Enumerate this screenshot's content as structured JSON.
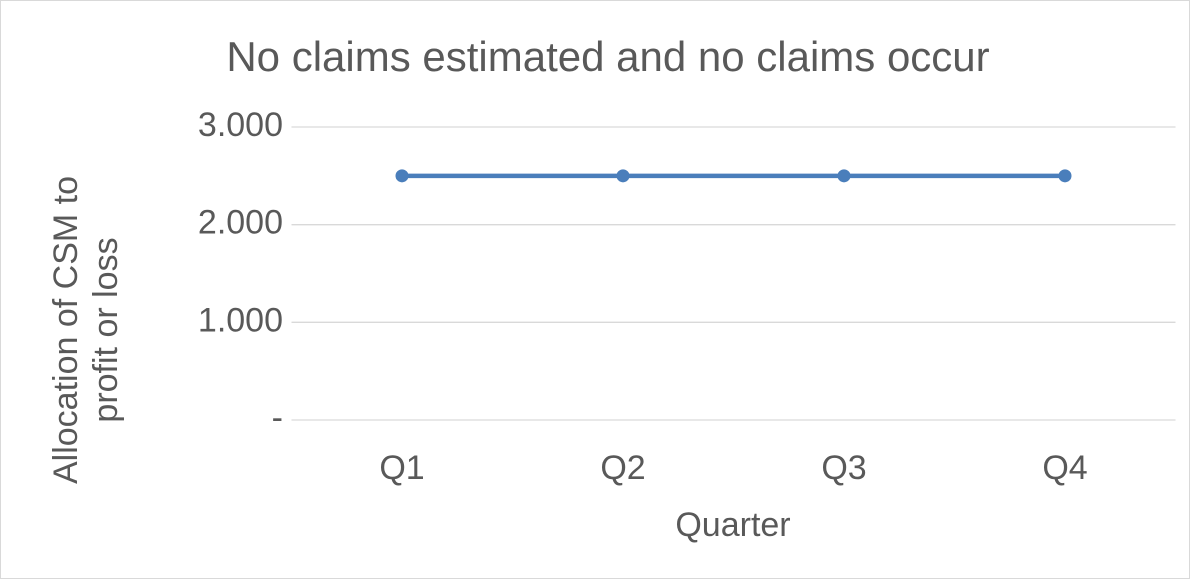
{
  "chart_data": {
    "type": "line",
    "title": "No claims estimated and no claims occur",
    "x_label": "Quarter",
    "y_label": "Allocation of CSM to profit or loss",
    "categories": [
      "Q1",
      "Q2",
      "Q3",
      "Q4"
    ],
    "values": [
      2500,
      2500,
      2500,
      2500
    ],
    "color": "#4a7ebb",
    "ylim": [
      0,
      3000
    ],
    "yticks": [
      {
        "value": 0,
        "label": "-"
      },
      {
        "value": 1000,
        "label": "1.000"
      },
      {
        "value": 2000,
        "label": "2.000"
      },
      {
        "value": 3000,
        "label": "3.000"
      }
    ],
    "grid": true
  }
}
